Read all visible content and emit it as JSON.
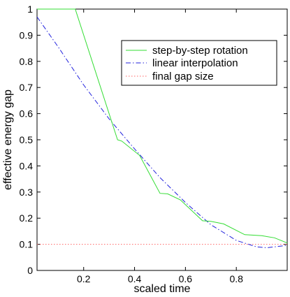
{
  "chart_data": {
    "type": "line",
    "xlabel": "scaled time",
    "ylabel": "effective energy gap",
    "xlim": [
      0.0167,
      1.0
    ],
    "ylim": [
      0,
      1
    ],
    "xticks": [
      {
        "value": 0.2,
        "label": "0.2"
      },
      {
        "value": 0.4,
        "label": "0.4"
      },
      {
        "value": 0.6,
        "label": "0.6"
      },
      {
        "value": 0.8,
        "label": "0.8"
      }
    ],
    "yticks": [
      {
        "value": 0,
        "label": "0"
      },
      {
        "value": 0.1,
        "label": "0.1"
      },
      {
        "value": 0.2,
        "label": "0.2"
      },
      {
        "value": 0.3,
        "label": "0.3"
      },
      {
        "value": 0.4,
        "label": "0.4"
      },
      {
        "value": 0.5,
        "label": "0.5"
      },
      {
        "value": 0.6,
        "label": "0.6"
      },
      {
        "value": 0.7,
        "label": "0.7"
      },
      {
        "value": 0.8,
        "label": "0.8"
      },
      {
        "value": 0.9,
        "label": "0.9"
      },
      {
        "value": 1,
        "label": "1"
      }
    ],
    "grid": false,
    "legend_position": "top-right",
    "series": [
      {
        "name": "step-by-step rotation",
        "color": "#33dd33",
        "dash": "solid",
        "x": [
          0.0167,
          0.167,
          0.333,
          0.35,
          0.42,
          0.5,
          0.53,
          0.58,
          0.667,
          0.7,
          0.75,
          0.833,
          0.9,
          0.95,
          1.0
        ],
        "y": [
          1.0,
          1.0,
          0.5,
          0.495,
          0.44,
          0.295,
          0.293,
          0.27,
          0.19,
          0.188,
          0.178,
          0.137,
          0.133,
          0.125,
          0.105
        ]
      },
      {
        "name": "linear interpolation",
        "color": "#2222dd",
        "dash": "dashdot",
        "x": [
          0.0167,
          0.1,
          0.2,
          0.3,
          0.4,
          0.5,
          0.6,
          0.7,
          0.8,
          0.88,
          0.92,
          1.0
        ],
        "y": [
          0.97,
          0.855,
          0.71,
          0.58,
          0.465,
          0.355,
          0.26,
          0.175,
          0.115,
          0.09,
          0.087,
          0.096
        ]
      },
      {
        "name": "final gap size",
        "color": "#ff6666",
        "dash": "dotted",
        "x": [
          0.0167,
          1.0
        ],
        "y": [
          0.1,
          0.1
        ]
      }
    ]
  }
}
